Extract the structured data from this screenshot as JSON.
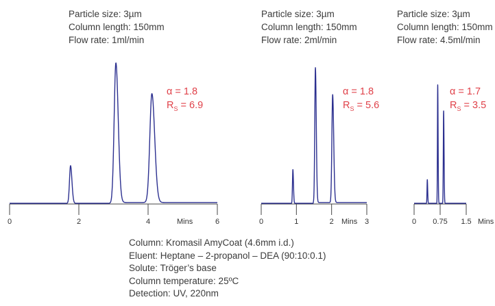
{
  "chart_data": [
    {
      "type": "line",
      "conditions": [
        "Particle size: 3µm",
        "Column length: 150mm",
        "Flow rate: 1ml/min"
      ],
      "alpha": "1.8",
      "rs": "6.9",
      "x_unit": "Mins",
      "xticks": [
        0,
        2,
        4,
        6
      ],
      "xtick_labels": [
        "0",
        "2",
        "4",
        "6"
      ],
      "xlim": [
        0,
        6
      ],
      "peaks": [
        {
          "rt": 1.76,
          "height": 0.27,
          "width": 0.03
        },
        {
          "rt": 3.07,
          "height": 1.0,
          "width": 0.05
        },
        {
          "rt": 4.11,
          "height": 0.78,
          "width": 0.06
        }
      ],
      "baseline_step_at": 2.95,
      "color": "#2b2f8f"
    },
    {
      "type": "line",
      "conditions": [
        "Particle size: 3µm",
        "Column length: 150mm",
        "Flow rate: 2ml/min"
      ],
      "alpha": "1.8",
      "rs": "5.6",
      "x_unit": "Mins",
      "xticks": [
        0,
        1,
        2,
        3
      ],
      "xtick_labels": [
        "0",
        "1",
        "2",
        "3"
      ],
      "xlim": [
        0,
        3
      ],
      "peaks": [
        {
          "rt": 0.9,
          "height": 0.25,
          "width": 0.012
        },
        {
          "rt": 1.54,
          "height": 1.0,
          "width": 0.018
        },
        {
          "rt": 2.03,
          "height": 0.8,
          "width": 0.022
        }
      ],
      "baseline_step_at": 1.48,
      "color": "#2b2f8f"
    },
    {
      "type": "line",
      "conditions": [
        "Particle size: 3µm",
        "Column length: 150mm",
        "Flow rate: 4.5ml/min"
      ],
      "alpha": "1.7",
      "rs": "3.5",
      "x_unit": "Mins",
      "xticks": [
        0,
        0.75,
        1.5
      ],
      "xtick_labels": [
        "0",
        "0.75",
        "1.5"
      ],
      "xlim": [
        0,
        1.5
      ],
      "peaks": [
        {
          "rt": 0.38,
          "height": 0.2,
          "width": 0.008
        },
        {
          "rt": 0.68,
          "height": 1.0,
          "width": 0.008
        },
        {
          "rt": 0.85,
          "height": 0.78,
          "width": 0.009
        }
      ],
      "baseline_step_at": null,
      "color": "#2b2f8f"
    }
  ],
  "footer": [
    "Column: Kromasil AmyCoat (4.6mm i.d.)",
    "Eluent: Heptane – 2-propanol – DEA (90:10:0.1)",
    "Solute: Tröger’s base",
    "Column temperature: 25ºC",
    "Detection: UV, 220nm"
  ],
  "labels": {
    "alpha_symbol": "α",
    "rs_letter": "R",
    "rs_sub": "S"
  }
}
